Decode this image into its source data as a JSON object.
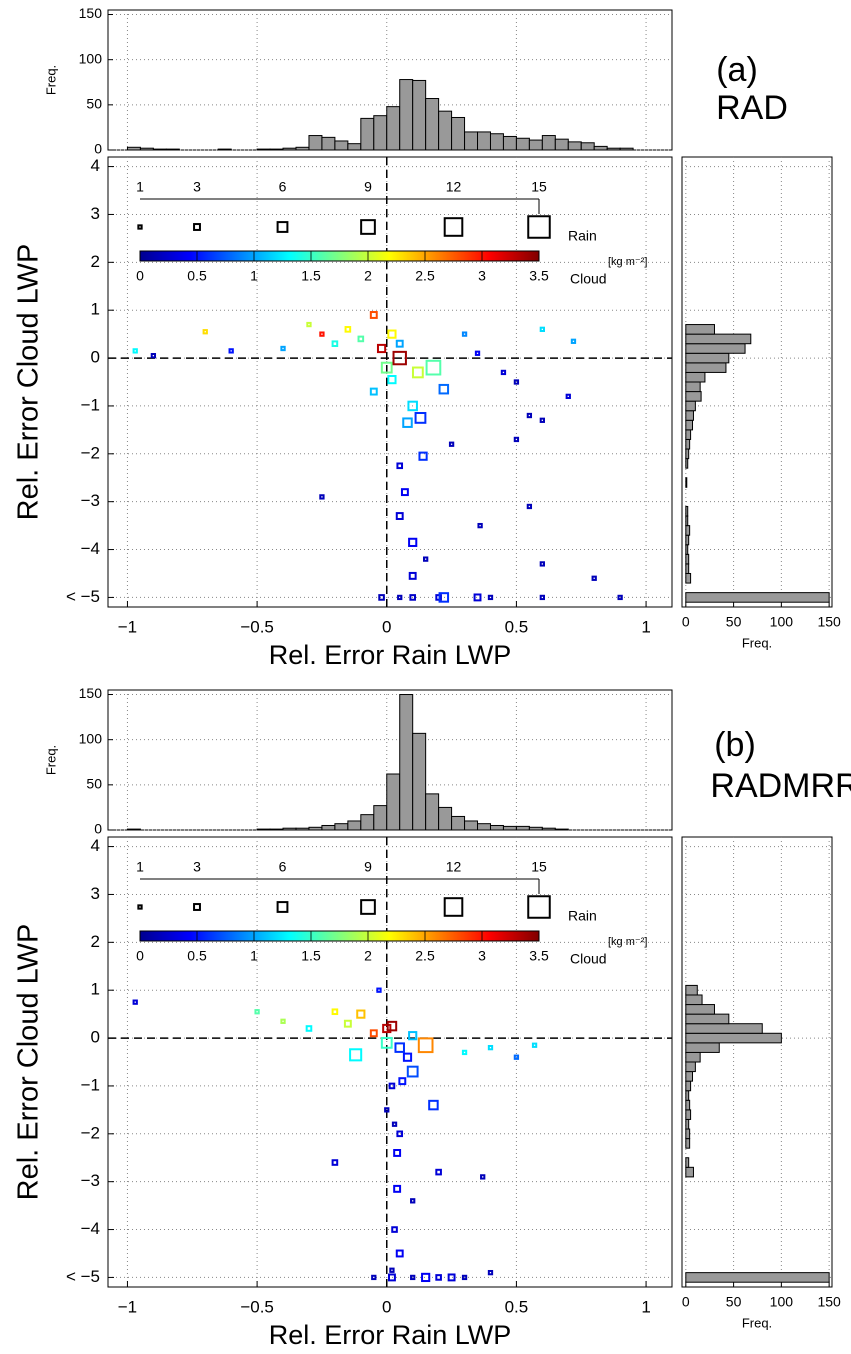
{
  "chart_data": [
    {
      "type": "histogram",
      "orientation": "vertical",
      "ylabel": "Freq.",
      "ylim": [
        0,
        155
      ],
      "yticks": [
        0,
        50,
        100,
        150
      ],
      "grid": true,
      "color": "#999999",
      "bins": [
        -1,
        -0.95,
        -0.9,
        -0.85,
        -0.8,
        -0.75,
        -0.7,
        -0.65,
        -0.6,
        -0.55,
        -0.5,
        -0.45,
        -0.4,
        -0.35,
        -0.3,
        -0.25,
        -0.2,
        -0.15,
        -0.1,
        -0.05,
        0,
        0.05,
        0.1,
        0.15,
        0.2,
        0.25,
        0.3,
        0.35,
        0.4,
        0.45,
        0.5,
        0.55,
        0.6,
        0.65,
        0.7,
        0.75,
        0.8,
        0.85,
        0.9,
        0.95,
        1
      ],
      "values": [
        3,
        2,
        1,
        1,
        0,
        0,
        0,
        1,
        0,
        0,
        1,
        1,
        2,
        3,
        16,
        14,
        10,
        7,
        35,
        38,
        48,
        78,
        77,
        57,
        43,
        36,
        20,
        20,
        18,
        15,
        13,
        11,
        16,
        12,
        9,
        8,
        4,
        2,
        2,
        0
      ]
    },
    {
      "type": "scatter",
      "panel_label": "(a)",
      "title": "RAD",
      "xlabel": "Rel. Error Rain LWP",
      "ylabel": "Rel. Error Cloud LWP",
      "xlim": [
        -1.075,
        1.1
      ],
      "ylim": [
        -5.2,
        4.2
      ],
      "xticks": [
        {
          "value": -1,
          "label": "−1"
        },
        {
          "value": -0.5,
          "label": "−0.5"
        },
        0,
        0.5,
        1
      ],
      "yticks": [
        4,
        3,
        2,
        1,
        0,
        {
          "value": -1,
          "label": "−1"
        },
        {
          "value": -2,
          "label": "−2"
        },
        {
          "value": -3,
          "label": "−3"
        },
        {
          "value": -4,
          "label": "−4"
        },
        {
          "value": -5,
          "label": "< −5"
        }
      ],
      "grid": true,
      "ref_x": 0,
      "ref_y": 0,
      "colormap": "jet",
      "size_legend": {
        "label": "Rain",
        "ticks": [
          1,
          3,
          6,
          9,
          12,
          15
        ]
      },
      "color_legend": {
        "label": "Cloud",
        "unit": "[kg m⁻²]",
        "ticks": [
          0,
          0.5,
          1,
          1.5,
          2,
          2.5,
          3,
          3.5
        ]
      },
      "x": [
        -0.97,
        -0.9,
        -0.7,
        -0.6,
        -0.4,
        -0.3,
        -0.25,
        -0.2,
        -0.15,
        -0.1,
        -0.05,
        -0.02,
        0.02,
        0.05,
        0,
        0.05,
        0.12,
        0.18,
        0.22,
        0.1,
        0.08,
        0.13,
        0.14,
        -0.05,
        0.02,
        0.3,
        0.35,
        0.45,
        0.5,
        0.6,
        0.7,
        0.72,
        0.55,
        0.6,
        0.5,
        0.25,
        -0.25,
        0.05,
        0.07,
        0.05,
        0.1,
        0.1,
        0.15,
        0.36,
        0.55,
        0.6,
        0.8,
        0.2,
        0.05,
        0.4,
        0.6,
        0.9,
        0.22,
        0.35,
        -0.02,
        0.1
      ],
      "y": [
        0.15,
        0.05,
        0.55,
        0.15,
        0.2,
        0.7,
        0.5,
        0.3,
        0.6,
        0.4,
        0.9,
        0.2,
        0.5,
        0.3,
        -0.2,
        0,
        -0.3,
        -0.2,
        -0.65,
        -1,
        -1.35,
        -1.25,
        -2.05,
        -0.7,
        -0.45,
        0.5,
        0.1,
        -0.3,
        -0.5,
        0.6,
        -0.8,
        0.35,
        -1.2,
        -1.3,
        -1.7,
        -1.8,
        -2.9,
        -2.25,
        -2.8,
        -3.3,
        -3.85,
        -4.55,
        -4.2,
        -3.5,
        -3.1,
        -4.3,
        -4.6,
        -5,
        -5,
        -5,
        -5,
        -5,
        -5,
        -5,
        -5,
        -5
      ],
      "rain": [
        1,
        1,
        1,
        1,
        1,
        1,
        1,
        2,
        2,
        2,
        3,
        4,
        4,
        3,
        6,
        8,
        6,
        9,
        5,
        5,
        5,
        6,
        4,
        3,
        4,
        1,
        1,
        1,
        1,
        1,
        1,
        1,
        1,
        1,
        1,
        1,
        1,
        2,
        3,
        3,
        4,
        3,
        1,
        1,
        1,
        1,
        1,
        2,
        1,
        1,
        1,
        1,
        5,
        3,
        2,
        2
      ],
      "cloud": [
        1.3,
        0.2,
        2.3,
        0.5,
        1,
        2,
        3,
        1.4,
        2.2,
        1.6,
        2.8,
        3.3,
        2.2,
        1,
        1.7,
        3.4,
        2,
        1.6,
        0.8,
        1.2,
        1,
        0.6,
        0.6,
        1.1,
        1.3,
        0.9,
        0.4,
        0.3,
        0.2,
        1.2,
        0.3,
        1,
        0.2,
        0.2,
        0.2,
        0.2,
        0.2,
        0.3,
        0.4,
        0.3,
        0.4,
        0.3,
        0.2,
        0.2,
        0.2,
        0.2,
        0.2,
        0.3,
        0.2,
        0.2,
        0.2,
        0.2,
        0.6,
        0.3,
        0.2,
        0.25
      ]
    },
    {
      "type": "histogram",
      "orientation": "horizontal",
      "xlabel": "Freq.",
      "xlim": [
        -4,
        153
      ],
      "xticks": [
        0,
        50,
        100,
        150
      ],
      "grid": true,
      "color": "#999999",
      "bins": [
        -5.1,
        -4.9,
        -4.7,
        -4.5,
        -4.3,
        -4.1,
        -3.9,
        -3.7,
        -3.5,
        -3.3,
        -3.1,
        -2.9,
        -2.7,
        -2.5,
        -2.3,
        -2.1,
        -1.9,
        -1.7,
        -1.5,
        -1.3,
        -1.1,
        -0.9,
        -0.7,
        -0.5,
        -0.3,
        -0.1,
        0.1,
        0.3,
        0.5,
        0.7,
        0.9,
        1.1
      ],
      "values": [
        150,
        0,
        5,
        3,
        3,
        2,
        3,
        4,
        2,
        2,
        0,
        0,
        1,
        0,
        2,
        3,
        4,
        5,
        7,
        8,
        10,
        16,
        15,
        20,
        42,
        45,
        62,
        68,
        30,
        0,
        0
      ]
    },
    {
      "type": "histogram",
      "orientation": "vertical",
      "ylabel": "Freq.",
      "ylim": [
        0,
        155
      ],
      "yticks": [
        0,
        50,
        100,
        150
      ],
      "grid": true,
      "color": "#999999",
      "bins": [
        -1,
        -0.95,
        -0.9,
        -0.85,
        -0.8,
        -0.75,
        -0.7,
        -0.65,
        -0.6,
        -0.55,
        -0.5,
        -0.45,
        -0.4,
        -0.35,
        -0.3,
        -0.25,
        -0.2,
        -0.15,
        -0.1,
        -0.05,
        0,
        0.05,
        0.1,
        0.15,
        0.2,
        0.25,
        0.3,
        0.35,
        0.4,
        0.45,
        0.5,
        0.55,
        0.6,
        0.65,
        0.7,
        0.75,
        0.8,
        0.85,
        0.9,
        0.95,
        1
      ],
      "values": [
        1,
        0,
        0,
        0,
        0,
        0,
        0,
        0,
        0,
        0,
        1,
        1,
        2,
        2,
        3,
        5,
        7,
        10,
        17,
        27,
        62,
        150,
        107,
        40,
        25,
        15,
        10,
        7,
        5,
        4,
        4,
        3,
        2,
        1,
        0,
        0,
        0,
        0,
        0,
        0
      ]
    },
    {
      "type": "scatter",
      "panel_label": "(b)",
      "title": "RADMRR",
      "xlabel": "Rel. Error Rain LWP",
      "ylabel": "Rel. Error Cloud LWP",
      "xlim": [
        -1.075,
        1.1
      ],
      "ylim": [
        -5.2,
        4.2
      ],
      "xticks": [
        {
          "value": -1,
          "label": "−1"
        },
        {
          "value": -0.5,
          "label": "−0.5"
        },
        0,
        0.5,
        1
      ],
      "yticks": [
        4,
        3,
        2,
        1,
        0,
        {
          "value": -1,
          "label": "−1"
        },
        {
          "value": -2,
          "label": "−2"
        },
        {
          "value": -3,
          "label": "−3"
        },
        {
          "value": -4,
          "label": "−4"
        },
        {
          "value": -5,
          "label": "< −5"
        }
      ],
      "grid": true,
      "ref_x": 0,
      "ref_y": 0,
      "colormap": "jet",
      "size_legend": {
        "label": "Rain",
        "ticks": [
          1,
          3,
          6,
          9,
          12,
          15
        ]
      },
      "color_legend": {
        "label": "Cloud",
        "unit": "[kg m⁻²]",
        "ticks": [
          0,
          0.5,
          1,
          1.5,
          2,
          2.5,
          3,
          3.5
        ]
      },
      "x": [
        -0.97,
        -0.5,
        -0.4,
        -0.3,
        -0.2,
        -0.15,
        -0.12,
        -0.1,
        -0.05,
        0,
        0.02,
        0,
        0.05,
        0.1,
        0.15,
        0.08,
        0.1,
        0.06,
        0.18,
        0.02,
        0.3,
        0.4,
        0.5,
        0.57,
        -0.03,
        0,
        0.03,
        0.05,
        0.04,
        -0.2,
        0.04,
        0.2,
        0.37,
        0.1,
        0.03,
        0.05,
        0.02,
        0.1,
        0.2,
        0.25,
        -0.05,
        0.3,
        0.4,
        0.15,
        0.02
      ],
      "y": [
        0.75,
        0.55,
        0.35,
        0.2,
        0.55,
        0.3,
        -0.35,
        0.5,
        0.1,
        0.2,
        0.25,
        -0.1,
        -0.2,
        0.05,
        -0.15,
        -0.4,
        -0.7,
        -0.9,
        -1.4,
        -1,
        -0.3,
        -0.2,
        -0.4,
        -0.15,
        1,
        -1.5,
        -1.8,
        -2,
        -2.4,
        -2.6,
        -3.15,
        -2.8,
        -2.9,
        -3.4,
        -4,
        -4.5,
        -4.85,
        -5,
        -5,
        -5,
        -5,
        -5,
        -4.9,
        -5,
        -5
      ],
      "rain": [
        1,
        1,
        1,
        2,
        2,
        3,
        7,
        4,
        3,
        4,
        5,
        6,
        5,
        4,
        9,
        4,
        6,
        3,
        5,
        2,
        1,
        1,
        1,
        1,
        1,
        1,
        1,
        2,
        3,
        2,
        3,
        2,
        1,
        1,
        2,
        3,
        1,
        1,
        2,
        3,
        1,
        1,
        1,
        4,
        3
      ],
      "cloud": [
        0.3,
        1.6,
        1.9,
        1.3,
        2.2,
        2,
        1.3,
        2.4,
        2.8,
        3.3,
        3.4,
        1.5,
        0.6,
        1.1,
        2.6,
        0.5,
        0.7,
        0.5,
        0.6,
        0.3,
        1.3,
        1.2,
        0.8,
        1.2,
        0.5,
        0.2,
        0.2,
        0.3,
        0.4,
        0.3,
        0.4,
        0.3,
        0.2,
        0.2,
        0.3,
        0.4,
        0.2,
        0.2,
        0.3,
        0.3,
        0.2,
        0.2,
        0.2,
        0.4,
        0.3
      ]
    },
    {
      "type": "histogram",
      "orientation": "horizontal",
      "xlabel": "Freq.",
      "xlim": [
        -4,
        153
      ],
      "xticks": [
        0,
        50,
        100,
        150
      ],
      "grid": true,
      "color": "#999999",
      "bins": [
        -5.1,
        -4.9,
        -4.7,
        -4.5,
        -4.3,
        -4.1,
        -3.9,
        -3.7,
        -3.5,
        -3.3,
        -3.1,
        -2.9,
        -2.7,
        -2.5,
        -2.3,
        -2.1,
        -1.9,
        -1.7,
        -1.5,
        -1.3,
        -1.1,
        -0.9,
        -0.7,
        -0.5,
        -0.3,
        -0.1,
        0.1,
        0.3,
        0.5,
        0.7,
        0.9,
        1.1
      ],
      "values": [
        150,
        0,
        0,
        0,
        0,
        0,
        0,
        0,
        0,
        0,
        0,
        8,
        3,
        0,
        4,
        4,
        3,
        5,
        4,
        3,
        5,
        7,
        10,
        15,
        35,
        100,
        80,
        45,
        30,
        17,
        12
      ]
    }
  ]
}
